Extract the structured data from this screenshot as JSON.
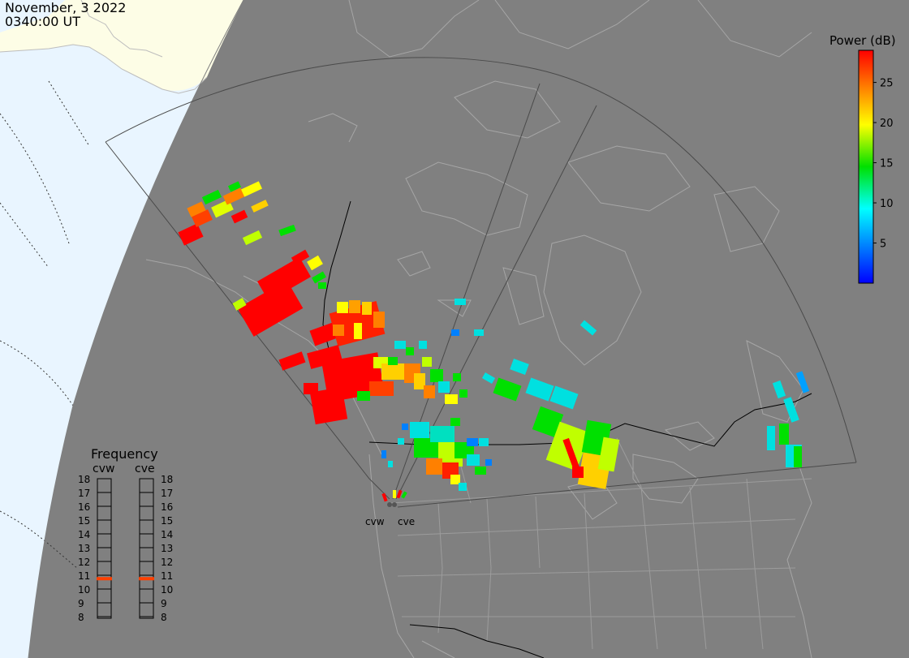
{
  "header": {
    "date": "November, 3 2022",
    "time": "0340:00 UT"
  },
  "colorbar": {
    "title": "Power (dB)",
    "ticks": [
      "25",
      "20",
      "15",
      "10",
      "5"
    ],
    "range": [
      0,
      29
    ]
  },
  "frequency_panel": {
    "title": "Frequency",
    "radars": [
      {
        "name": "cvw",
        "selected": "10.75"
      },
      {
        "name": "cve",
        "selected": "10.75"
      }
    ],
    "scale": [
      "18",
      "17",
      "16",
      "15",
      "14",
      "13",
      "12",
      "11",
      "10",
      "9",
      "8"
    ]
  },
  "radar_sites": [
    {
      "name": "cvw"
    },
    {
      "name": "cve"
    }
  ],
  "colors": {
    "night_side": "#808080",
    "day_land": "#fdfde6",
    "day_ocean": "#e9f5ff",
    "coastline": "#a6a6a6",
    "fov_outline": "#4a4a4a",
    "frequency_marker": "#ff4000"
  }
}
